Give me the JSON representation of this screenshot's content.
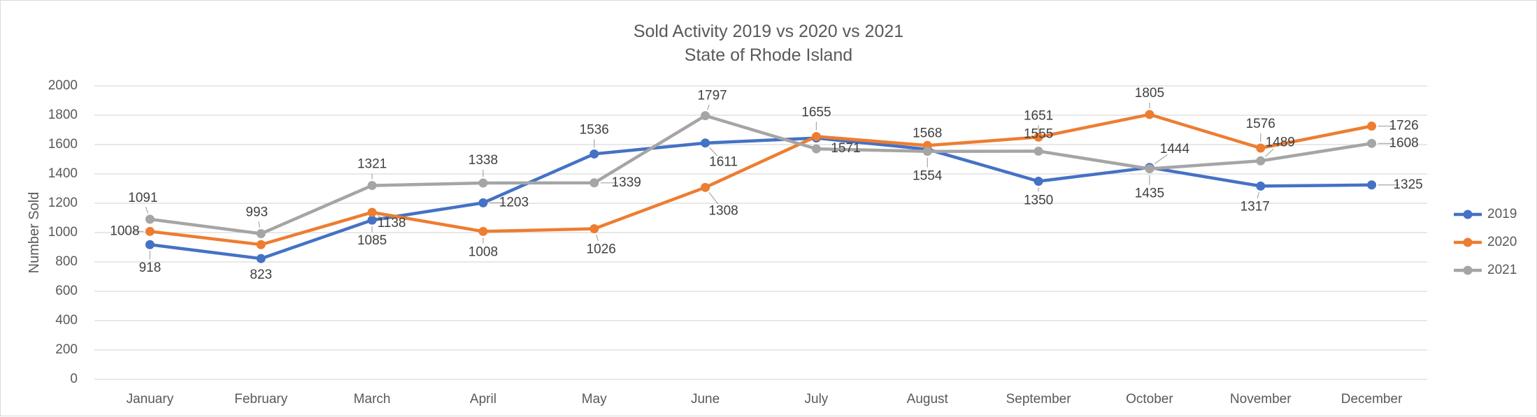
{
  "chart_data": {
    "type": "line",
    "title": "Sold Activity 2019 vs 2020 vs 2021",
    "subtitle": "State of Rhode Island",
    "xlabel": "",
    "ylabel": "Number Sold",
    "ylim": [
      0,
      2000
    ],
    "yticks": [
      0,
      200,
      400,
      600,
      800,
      1000,
      1200,
      1400,
      1600,
      1800,
      2000
    ],
    "grid": true,
    "legend_position": "right",
    "categories": [
      "January",
      "February",
      "March",
      "April",
      "May",
      "June",
      "July",
      "August",
      "September",
      "October",
      "November",
      "December"
    ],
    "series": [
      {
        "name": "2019",
        "color": "#4472c4",
        "values": [
          918,
          823,
          1085,
          1203,
          1536,
          1611,
          1645,
          1568,
          1350,
          1444,
          1317,
          1325
        ]
      },
      {
        "name": "2020",
        "color": "#ed7d31",
        "values": [
          1008,
          918,
          1138,
          1008,
          1026,
          1308,
          1655,
          1594,
          1651,
          1805,
          1576,
          1726
        ]
      },
      {
        "name": "2021",
        "color": "#a5a5a5",
        "values": [
          1091,
          993,
          1321,
          1338,
          1339,
          1797,
          1571,
          1554,
          1555,
          1435,
          1489,
          1608
        ]
      }
    ],
    "data_labels": [
      {
        "series": "2019",
        "index": 0,
        "text": "918"
      },
      {
        "series": "2019",
        "index": 1,
        "text": "823"
      },
      {
        "series": "2019",
        "index": 2,
        "text": "1085"
      },
      {
        "series": "2019",
        "index": 3,
        "text": "1203"
      },
      {
        "series": "2019",
        "index": 4,
        "text": "1536"
      },
      {
        "series": "2019",
        "index": 5,
        "text": "1611"
      },
      {
        "series": "2019",
        "index": 7,
        "text": "1568"
      },
      {
        "series": "2019",
        "index": 8,
        "text": "1350"
      },
      {
        "series": "2019",
        "index": 9,
        "text": "1444"
      },
      {
        "series": "2019",
        "index": 10,
        "text": "1317"
      },
      {
        "series": "2019",
        "index": 11,
        "text": "1325"
      },
      {
        "series": "2020",
        "index": 0,
        "text": "1008"
      },
      {
        "series": "2020",
        "index": 2,
        "text": "1138"
      },
      {
        "series": "2020",
        "index": 3,
        "text": "1008"
      },
      {
        "series": "2020",
        "index": 4,
        "text": "1026"
      },
      {
        "series": "2020",
        "index": 5,
        "text": "1308"
      },
      {
        "series": "2020",
        "index": 6,
        "text": "1655"
      },
      {
        "series": "2020",
        "index": 8,
        "text": "1651"
      },
      {
        "series": "2020",
        "index": 9,
        "text": "1805"
      },
      {
        "series": "2020",
        "index": 10,
        "text": "1576"
      },
      {
        "series": "2020",
        "index": 11,
        "text": "1726"
      },
      {
        "series": "2021",
        "index": 0,
        "text": "1091"
      },
      {
        "series": "2021",
        "index": 1,
        "text": "993"
      },
      {
        "series": "2021",
        "index": 2,
        "text": "1321"
      },
      {
        "series": "2021",
        "index": 3,
        "text": "1338"
      },
      {
        "series": "2021",
        "index": 4,
        "text": "1339"
      },
      {
        "series": "2021",
        "index": 5,
        "text": "1797"
      },
      {
        "series": "2021",
        "index": 6,
        "text": "1571"
      },
      {
        "series": "2021",
        "index": 7,
        "text": "1554"
      },
      {
        "series": "2021",
        "index": 8,
        "text": "1555"
      },
      {
        "series": "2021",
        "index": 9,
        "text": "1435"
      },
      {
        "series": "2021",
        "index": 10,
        "text": "1489"
      },
      {
        "series": "2021",
        "index": 11,
        "text": "1608"
      }
    ]
  }
}
